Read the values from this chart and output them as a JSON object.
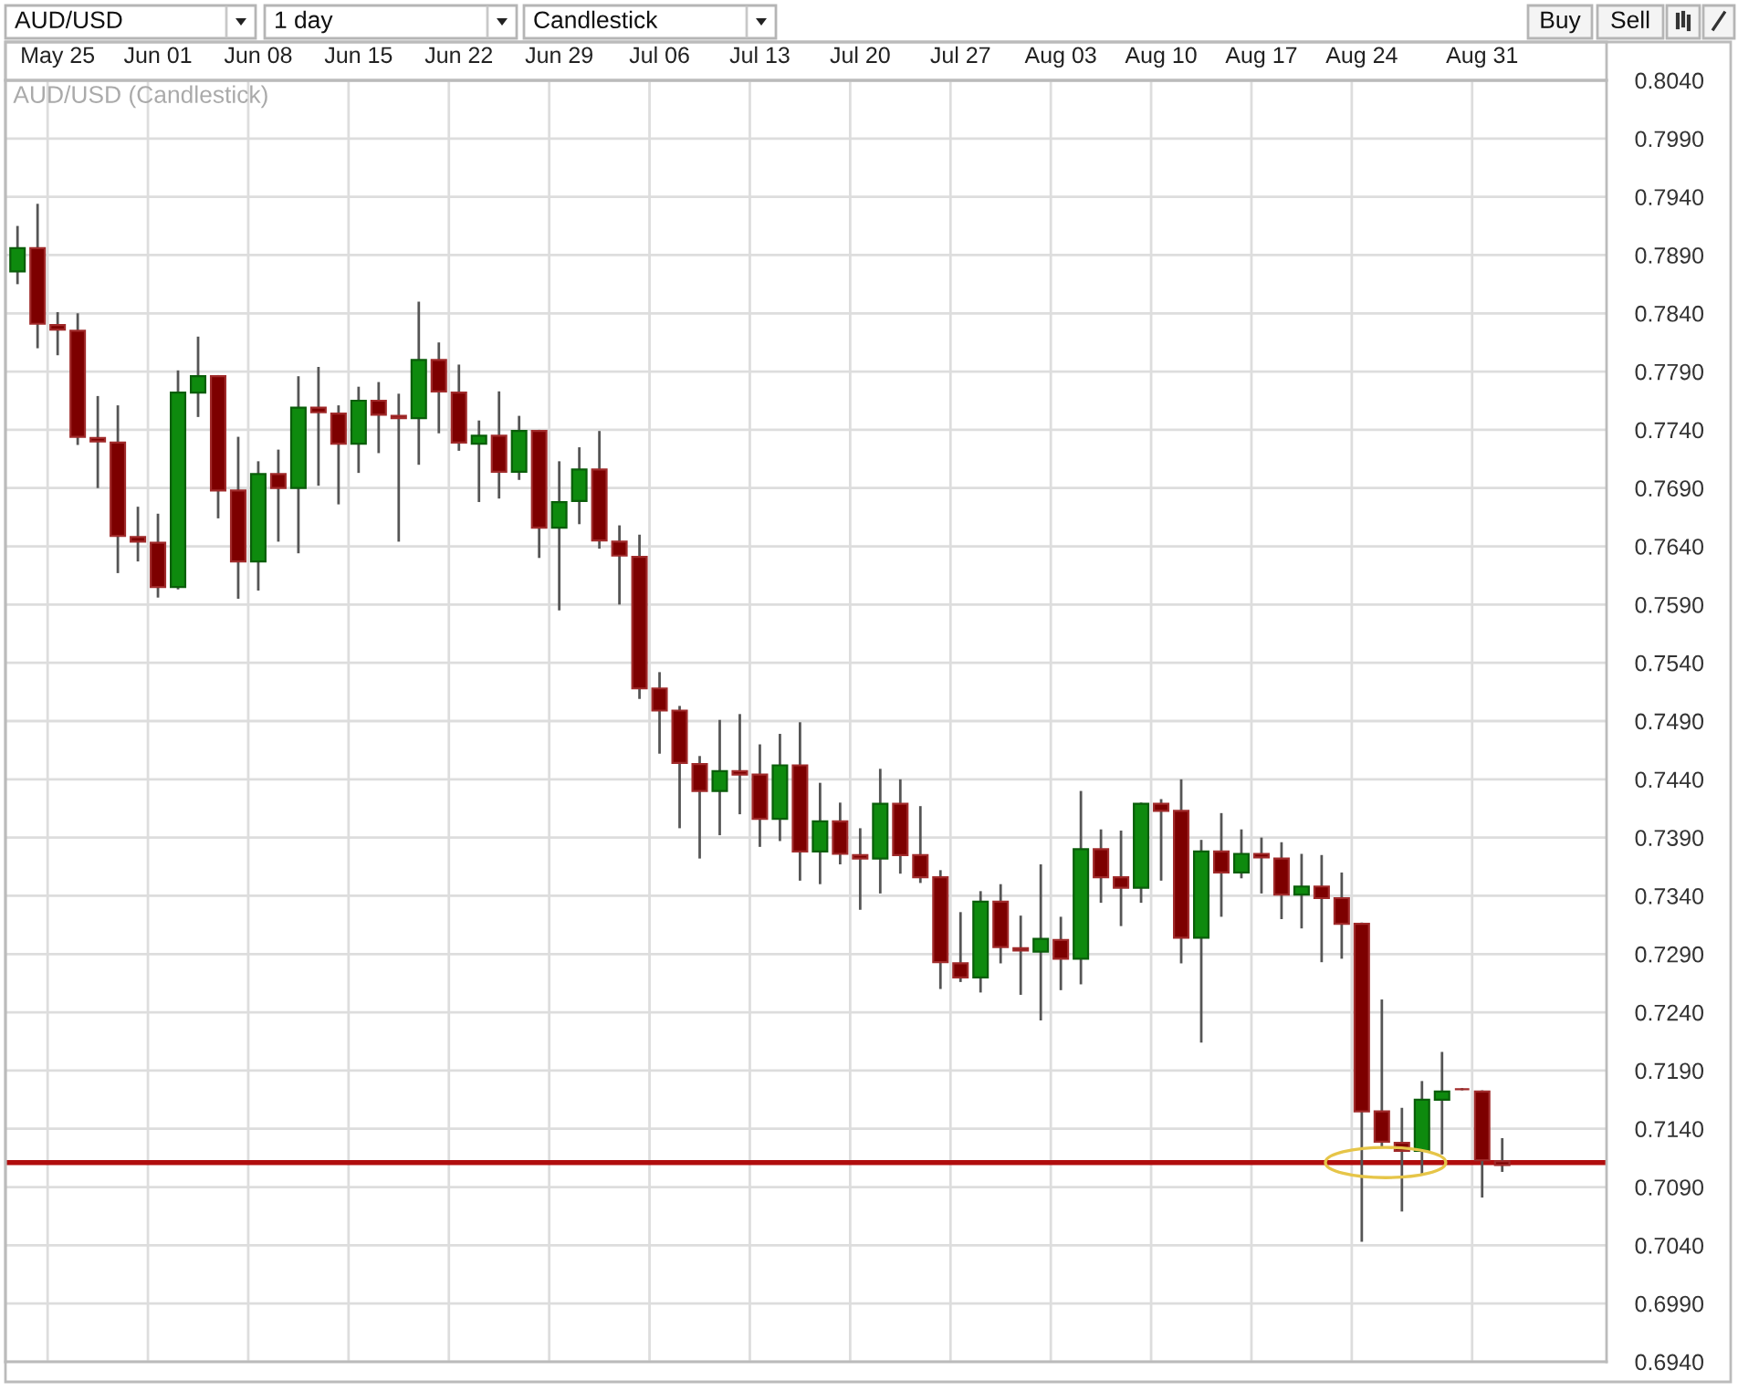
{
  "chart_data": {
    "type": "candlestick",
    "title": "AUD/USD (Candlestick)",
    "categories": [
      null,
      null,
      "May 25",
      null,
      null,
      null,
      null,
      "Jun 01",
      null,
      null,
      null,
      null,
      "Jun 08",
      null,
      null,
      null,
      null,
      "Jun 15",
      null,
      null,
      null,
      null,
      "Jun 22",
      null,
      null,
      null,
      null,
      "Jun 29",
      null,
      null,
      null,
      null,
      "Jul 06",
      null,
      null,
      null,
      null,
      "Jul 13",
      null,
      null,
      null,
      null,
      "Jul 20",
      null,
      null,
      null,
      null,
      "Jul 27",
      null,
      null,
      null,
      null,
      "Aug 03",
      null,
      null,
      null,
      null,
      "Aug 10",
      null,
      null,
      null,
      null,
      "Aug 17",
      null,
      null,
      null,
      null,
      "Aug 24",
      null,
      null,
      null,
      null,
      null,
      "Aug 31",
      null
    ],
    "ohlc": [
      [
        0.7876,
        0.7915,
        0.7865,
        0.7896
      ],
      [
        0.7896,
        0.7934,
        0.781,
        0.7831
      ],
      [
        0.783,
        0.7841,
        0.7804,
        0.7826
      ],
      [
        0.7825,
        0.784,
        0.7727,
        0.7734
      ],
      [
        0.7733,
        0.7769,
        0.769,
        0.773
      ],
      [
        0.7729,
        0.7761,
        0.7617,
        0.7649
      ],
      [
        0.7648,
        0.7674,
        0.7627,
        0.7644
      ],
      [
        0.7643,
        0.7668,
        0.7596,
        0.7605
      ],
      [
        0.7605,
        0.7791,
        0.7603,
        0.7772
      ],
      [
        0.7772,
        0.782,
        0.7751,
        0.7786
      ],
      [
        0.7786,
        0.7787,
        0.7664,
        0.7688
      ],
      [
        0.7688,
        0.7734,
        0.7595,
        0.7627
      ],
      [
        0.7627,
        0.7713,
        0.7602,
        0.7702
      ],
      [
        0.7702,
        0.7723,
        0.7644,
        0.769
      ],
      [
        0.769,
        0.7786,
        0.7634,
        0.7759
      ],
      [
        0.7759,
        0.7794,
        0.7692,
        0.7755
      ],
      [
        0.7754,
        0.7761,
        0.7676,
        0.7728
      ],
      [
        0.7728,
        0.7777,
        0.7703,
        0.7765
      ],
      [
        0.7765,
        0.7781,
        0.772,
        0.7753
      ],
      [
        0.7752,
        0.7771,
        0.7644,
        0.775
      ],
      [
        0.775,
        0.785,
        0.771,
        0.78
      ],
      [
        0.78,
        0.7815,
        0.7737,
        0.7773
      ],
      [
        0.7772,
        0.7796,
        0.7722,
        0.7729
      ],
      [
        0.7728,
        0.7748,
        0.7678,
        0.7735
      ],
      [
        0.7735,
        0.7773,
        0.7681,
        0.7704
      ],
      [
        0.7704,
        0.7752,
        0.7697,
        0.7739
      ],
      [
        0.7739,
        0.774,
        0.763,
        0.7656
      ],
      [
        0.7656,
        0.7713,
        0.7585,
        0.7678
      ],
      [
        0.7679,
        0.7725,
        0.7659,
        0.7706
      ],
      [
        0.7706,
        0.7739,
        0.7638,
        0.7645
      ],
      [
        0.7644,
        0.7658,
        0.759,
        0.7632
      ],
      [
        0.7631,
        0.765,
        0.7509,
        0.7518
      ],
      [
        0.7518,
        0.7532,
        0.7462,
        0.7499
      ],
      [
        0.7499,
        0.7503,
        0.7398,
        0.7454
      ],
      [
        0.7453,
        0.746,
        0.7372,
        0.743
      ],
      [
        0.743,
        0.7491,
        0.7392,
        0.7447
      ],
      [
        0.7447,
        0.7496,
        0.741,
        0.7444
      ],
      [
        0.7444,
        0.747,
        0.7382,
        0.7406
      ],
      [
        0.7406,
        0.7479,
        0.7387,
        0.7452
      ],
      [
        0.7452,
        0.7489,
        0.7353,
        0.7378
      ],
      [
        0.7378,
        0.7437,
        0.735,
        0.7404
      ],
      [
        0.7404,
        0.742,
        0.7367,
        0.7376
      ],
      [
        0.7375,
        0.7398,
        0.7328,
        0.7372
      ],
      [
        0.7372,
        0.7449,
        0.7342,
        0.7419
      ],
      [
        0.7419,
        0.744,
        0.7359,
        0.7375
      ],
      [
        0.7375,
        0.7417,
        0.7351,
        0.7356
      ],
      [
        0.7356,
        0.7362,
        0.726,
        0.7283
      ],
      [
        0.7282,
        0.7326,
        0.7266,
        0.727
      ],
      [
        0.727,
        0.7344,
        0.7257,
        0.7335
      ],
      [
        0.7335,
        0.735,
        0.7282,
        0.7296
      ],
      [
        0.7295,
        0.7323,
        0.7255,
        0.7293
      ],
      [
        0.7292,
        0.7367,
        0.7233,
        0.7303
      ],
      [
        0.7302,
        0.7322,
        0.7259,
        0.7286
      ],
      [
        0.7286,
        0.743,
        0.7264,
        0.738
      ],
      [
        0.738,
        0.7397,
        0.7334,
        0.7356
      ],
      [
        0.7356,
        0.7396,
        0.7314,
        0.7347
      ],
      [
        0.7347,
        0.742,
        0.7334,
        0.7419
      ],
      [
        0.7419,
        0.7423,
        0.7353,
        0.7413
      ],
      [
        0.7413,
        0.744,
        0.7282,
        0.7304
      ],
      [
        0.7304,
        0.7388,
        0.7214,
        0.7378
      ],
      [
        0.7378,
        0.7411,
        0.7322,
        0.736
      ],
      [
        0.736,
        0.7397,
        0.7355,
        0.7376
      ],
      [
        0.7376,
        0.739,
        0.7342,
        0.7373
      ],
      [
        0.7372,
        0.7386,
        0.732,
        0.7341
      ],
      [
        0.7341,
        0.7376,
        0.7312,
        0.7348
      ],
      [
        0.7348,
        0.7375,
        0.7283,
        0.7338
      ],
      [
        0.7338,
        0.736,
        0.7286,
        0.7316
      ],
      [
        0.7316,
        0.7317,
        0.7043,
        0.7155
      ],
      [
        0.7155,
        0.7251,
        0.7124,
        0.7129
      ],
      [
        0.7128,
        0.7158,
        0.7069,
        0.7121
      ],
      [
        0.7121,
        0.7181,
        0.71,
        0.7165
      ],
      [
        0.7165,
        0.7206,
        0.7118,
        0.7172
      ],
      [
        0.7174,
        0.7175,
        0.7173,
        0.7174
      ],
      [
        0.7172,
        0.7173,
        0.7081,
        0.7113
      ],
      [
        0.7112,
        0.7132,
        0.7103,
        0.7109
      ]
    ],
    "ylim": [
      0.694,
      0.804
    ],
    "yticks": [
      {
        "value": 0.694,
        "label": "0.6940"
      },
      {
        "value": 0.699,
        "label": "0.6990"
      },
      {
        "value": 0.704,
        "label": "0.7040"
      },
      {
        "value": 0.709,
        "label": "0.7090"
      },
      {
        "value": 0.714,
        "label": "0.7140"
      },
      {
        "value": 0.719,
        "label": "0.7190"
      },
      {
        "value": 0.724,
        "label": "0.7240"
      },
      {
        "value": 0.729,
        "label": "0.7290"
      },
      {
        "value": 0.734,
        "label": "0.7340"
      },
      {
        "value": 0.739,
        "label": "0.7390"
      },
      {
        "value": 0.744,
        "label": "0.7440"
      },
      {
        "value": 0.749,
        "label": "0.7490"
      },
      {
        "value": 0.754,
        "label": "0.7540"
      },
      {
        "value": 0.759,
        "label": "0.7590"
      },
      {
        "value": 0.764,
        "label": "0.7640"
      },
      {
        "value": 0.769,
        "label": "0.7690"
      },
      {
        "value": 0.774,
        "label": "0.7740"
      },
      {
        "value": 0.779,
        "label": "0.7790"
      },
      {
        "value": 0.784,
        "label": "0.7840"
      },
      {
        "value": 0.789,
        "label": "0.7890"
      },
      {
        "value": 0.794,
        "label": "0.7940"
      },
      {
        "value": 0.799,
        "label": "0.7990"
      },
      {
        "value": 0.804,
        "label": "0.8040"
      }
    ],
    "grid": true,
    "ref_lines": [
      {
        "axis": "y",
        "value": 0.7111,
        "color": "#b00d0d"
      }
    ],
    "annotations": [
      "AUD/USD",
      "1 day",
      "Candlestick",
      "Buy",
      "Sell"
    ]
  }
}
